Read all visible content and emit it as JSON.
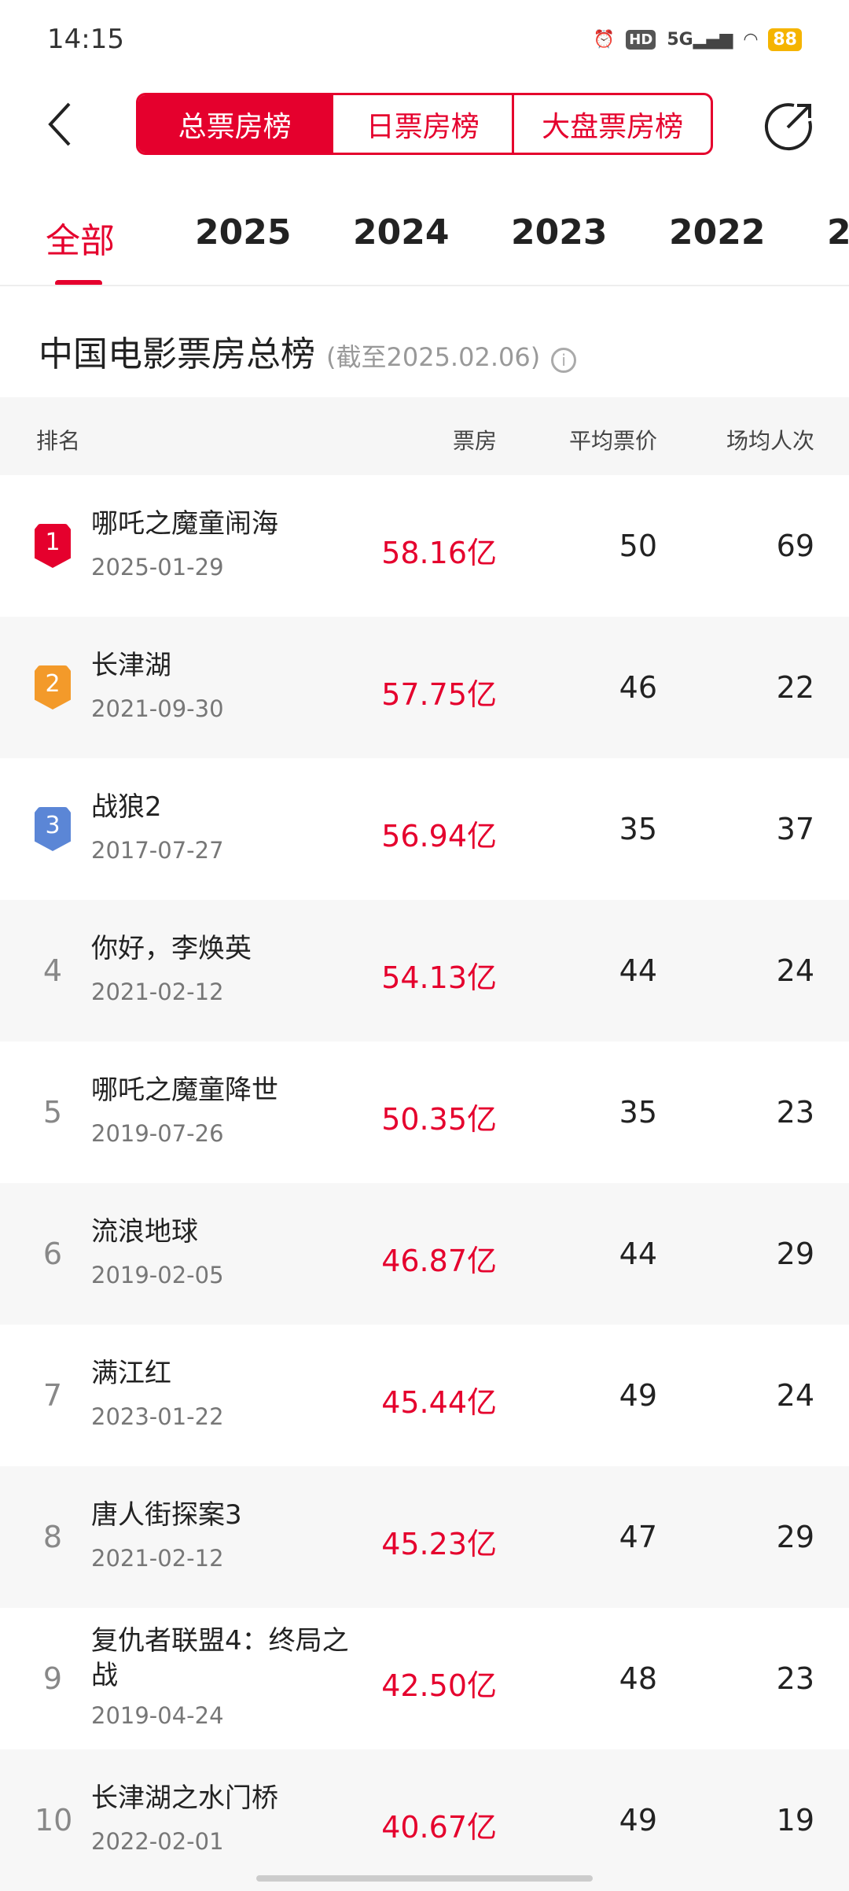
{
  "status": {
    "time": "14:15",
    "hd": "HD",
    "network": "5G",
    "battery": "88"
  },
  "header": {
    "tabs": [
      "总票房榜",
      "日票房榜",
      "大盘票房榜"
    ],
    "active": 0
  },
  "years": [
    "全部",
    "2025",
    "2024",
    "2023",
    "2022",
    "2"
  ],
  "title": {
    "main": "中国电影票房总榜",
    "sub": "(截至2025.02.06)",
    "info": "i"
  },
  "columns": {
    "rank": "排名",
    "box": "票房",
    "price": "平均票价",
    "per_session": "场均人次"
  },
  "colors": {
    "accent": "#e5002d",
    "gold": "#f39a2a",
    "silver": "#f39a2a",
    "bronze": "#5b86d6"
  },
  "rows": [
    {
      "rank": "1",
      "name": "哪吒之魔童闹海",
      "date": "2025-01-29",
      "box": "58.16亿",
      "price": "50",
      "per_session": "69"
    },
    {
      "rank": "2",
      "name": "长津湖",
      "date": "2021-09-30",
      "box": "57.75亿",
      "price": "46",
      "per_session": "22"
    },
    {
      "rank": "3",
      "name": "战狼2",
      "date": "2017-07-27",
      "box": "56.94亿",
      "price": "35",
      "per_session": "37"
    },
    {
      "rank": "4",
      "name": "你好，李焕英",
      "date": "2021-02-12",
      "box": "54.13亿",
      "price": "44",
      "per_session": "24"
    },
    {
      "rank": "5",
      "name": "哪吒之魔童降世",
      "date": "2019-07-26",
      "box": "50.35亿",
      "price": "35",
      "per_session": "23"
    },
    {
      "rank": "6",
      "name": "流浪地球",
      "date": "2019-02-05",
      "box": "46.87亿",
      "price": "44",
      "per_session": "29"
    },
    {
      "rank": "7",
      "name": "满江红",
      "date": "2023-01-22",
      "box": "45.44亿",
      "price": "49",
      "per_session": "24"
    },
    {
      "rank": "8",
      "name": "唐人街探案3",
      "date": "2021-02-12",
      "box": "45.23亿",
      "price": "47",
      "per_session": "29"
    },
    {
      "rank": "9",
      "name": "复仇者联盟4：终局之战",
      "date": "2019-04-24",
      "box": "42.50亿",
      "price": "48",
      "per_session": "23"
    },
    {
      "rank": "10",
      "name": "长津湖之水门桥",
      "date": "2022-02-01",
      "box": "40.67亿",
      "price": "49",
      "per_session": "19"
    }
  ]
}
